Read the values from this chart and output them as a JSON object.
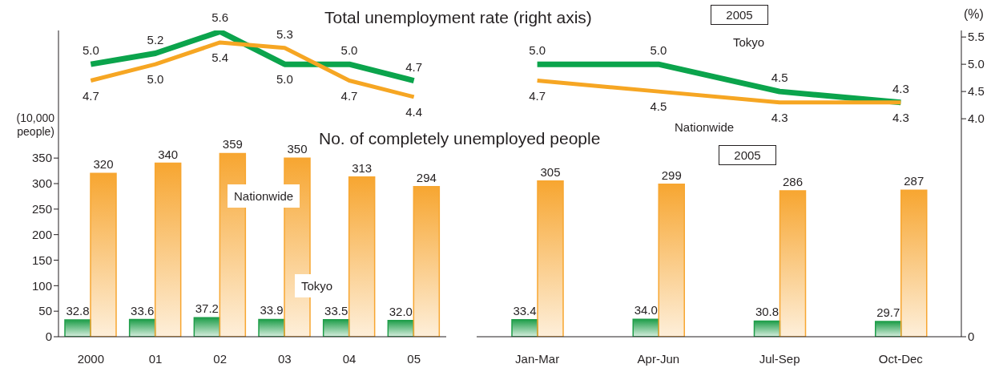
{
  "chart_data": [
    {
      "type": "bar",
      "title": "Total unemployment rate (right axis)",
      "subtitle": "No. of completely unemployed people",
      "ylabel": "(10,000 people)",
      "categories": [
        "2000",
        "01",
        "02",
        "03",
        "04",
        "05"
      ],
      "series": [
        {
          "name": "Tokyo",
          "color": "#1f9e4a",
          "values": [
            32.8,
            33.6,
            37.2,
            33.9,
            33.5,
            32.0
          ],
          "value_labels": [
            "32.8",
            "33.6",
            "37.2",
            "33.9",
            "33.5",
            "32.0"
          ]
        },
        {
          "name": "Nationwide",
          "color": "#f7a631",
          "values": [
            320,
            340,
            359,
            350,
            313,
            294
          ],
          "value_labels": [
            "320",
            "340",
            "359",
            "350",
            "313",
            "294"
          ]
        },
        {
          "type": "line",
          "axis": "y2",
          "color": "#0ba44c",
          "values": [
            5.0,
            5.2,
            5.6,
            5.0,
            5.0,
            4.7
          ],
          "value_labels": [
            "5.0",
            "5.2",
            "5.6",
            "5.0",
            "5.0",
            "4.7"
          ]
        },
        {
          "type": "line",
          "axis": "y2",
          "color": "#f6a623",
          "values": [
            4.7,
            5.0,
            5.4,
            5.3,
            4.7,
            4.4
          ],
          "value_labels": [
            "4.7",
            "5.0",
            "5.4",
            "5.3",
            "4.7",
            "4.4"
          ]
        }
      ],
      "ylim": [
        0,
        600
      ],
      "yticks": [
        0,
        50,
        100,
        150,
        200,
        250,
        300,
        350
      ],
      "y2lim": [
        0,
        5.62
      ],
      "grid": false,
      "legend": false
    },
    {
      "type": "bar",
      "y2label": "(%)",
      "annotations": [
        "2005",
        "2005"
      ],
      "categories": [
        "Jan-Mar",
        "Apr-Jun",
        "Jul-Sep",
        "Oct-Dec"
      ],
      "series": [
        {
          "color": "#1f9e4a",
          "values": [
            33.4,
            34.0,
            30.8,
            29.7
          ],
          "value_labels": [
            "33.4",
            "34.0",
            "30.8",
            "29.7"
          ]
        },
        {
          "color": "#f7a631",
          "values": [
            305,
            299,
            286,
            287
          ],
          "value_labels": [
            "305",
            "299",
            "286",
            "287"
          ]
        },
        {
          "name": "Tokyo",
          "type": "line",
          "axis": "y2",
          "color": "#0ba44c",
          "values": [
            5.0,
            5.0,
            4.5,
            4.3
          ],
          "value_labels": [
            "5.0",
            "5.0",
            "4.5",
            "4.3"
          ]
        },
        {
          "name": "Nationwide",
          "type": "line",
          "axis": "y2",
          "color": "#f6a623",
          "values": [
            4.7,
            4.5,
            4.3,
            4.3
          ],
          "value_labels": [
            "4.7",
            "4.5",
            "4.3",
            "4.3"
          ]
        }
      ],
      "ylim": [
        0,
        600
      ],
      "y2lim": [
        0,
        5.62
      ],
      "y2ticks": [
        0,
        {
          "value": 4,
          "label": "4.0"
        },
        {
          "value": 4.5,
          "label": "4.5"
        },
        {
          "value": 5,
          "label": "5.0"
        },
        {
          "value": 5.5,
          "label": "5.5"
        }
      ],
      "grid": false,
      "legend": false
    }
  ]
}
